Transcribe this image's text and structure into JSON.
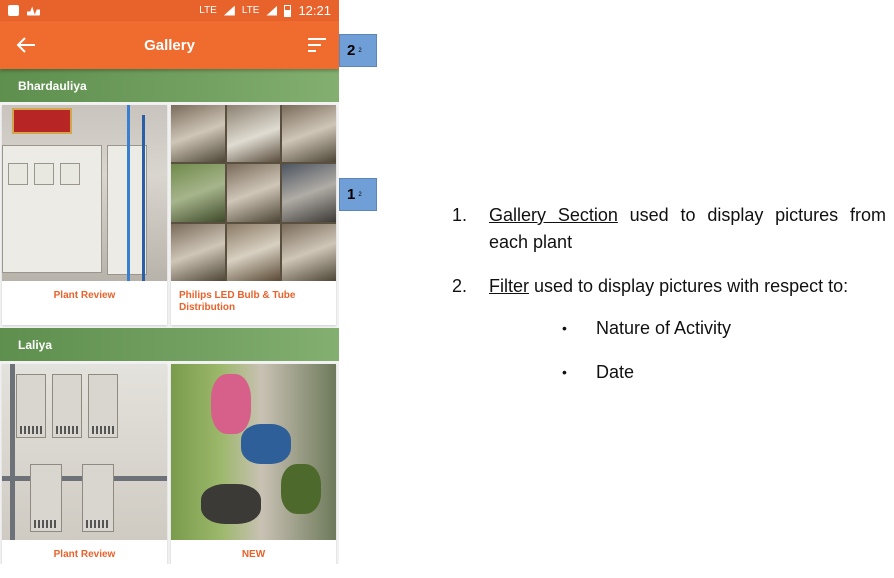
{
  "status_bar": {
    "network_1": "LTE",
    "network_2": "LTE",
    "time": "12:21"
  },
  "app_bar": {
    "title": "Gallery",
    "back_icon": "arrow-left-icon",
    "filter_icon": "sort-filter-icon"
  },
  "sections": [
    {
      "name": "Bhardauliya",
      "cards": [
        {
          "label": "Plant Review"
        },
        {
          "label": "Philips LED Bulb & Tube Distribution"
        }
      ]
    },
    {
      "name": "Laliya",
      "cards": [
        {
          "label": "Plant Review"
        },
        {
          "label": "NEW"
        }
      ]
    }
  ],
  "callouts": [
    {
      "number": "2",
      "sub": "2"
    },
    {
      "number": "1",
      "sub": "2"
    }
  ],
  "notes": {
    "items": [
      {
        "num": "1.",
        "key": "Gallery Section",
        "text": " used to display pictures from each plant"
      },
      {
        "num": "2.",
        "key": "Filter",
        "text": " used to display pictures with respect to:"
      }
    ],
    "bullets": [
      "Nature of Activity",
      "Date"
    ]
  },
  "colors": {
    "app_bar": "#ef6b2e",
    "section_header": "#73a162",
    "card_label": "#e8622c",
    "callout": "#6f9fd6"
  }
}
